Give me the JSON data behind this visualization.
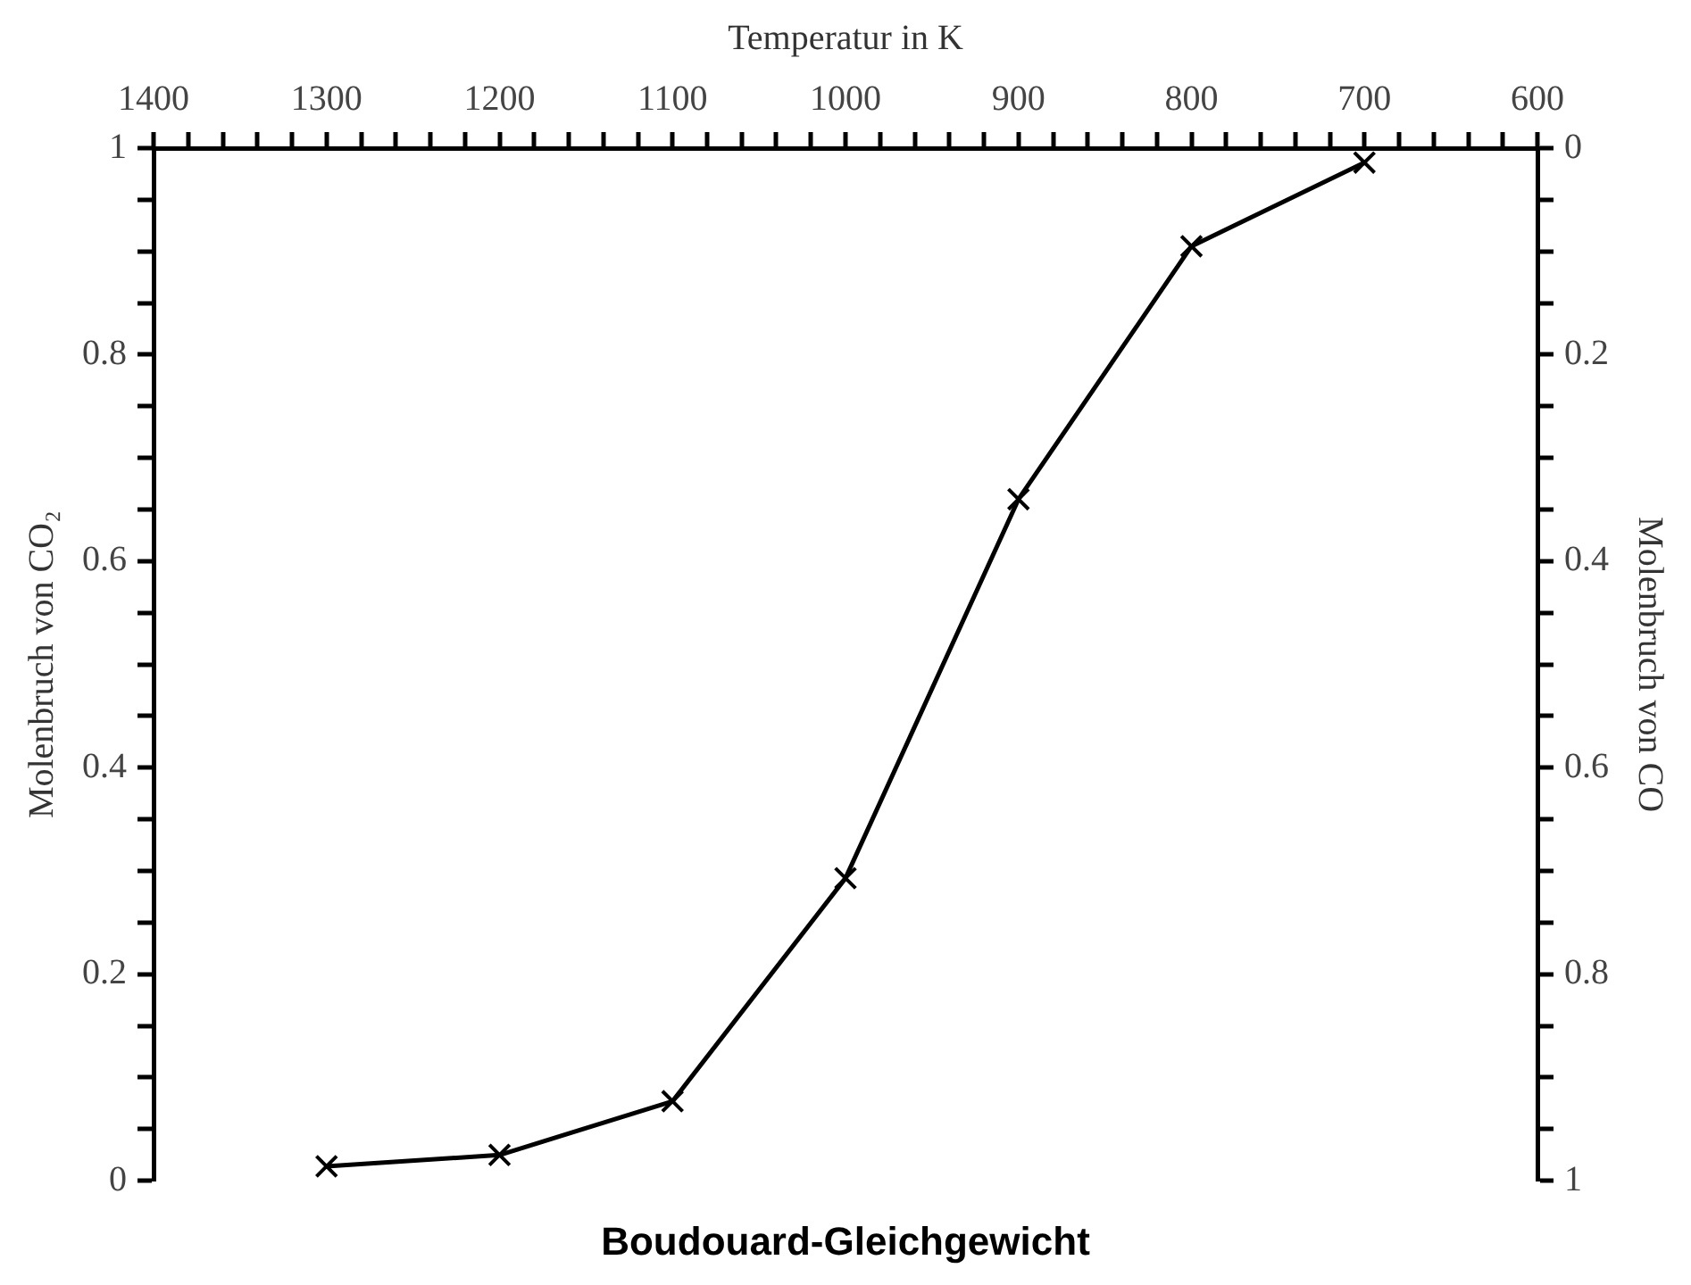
{
  "chart_data": {
    "type": "line",
    "title": "Boudouard-Gleichgewicht",
    "xlabel": "Temperatur in K",
    "ylabel": "Molenbruch von CO₂",
    "y2label": "Molenbruch von CO",
    "x": [
      700,
      800,
      900,
      1000,
      1100,
      1200,
      1300
    ],
    "series": [
      {
        "color": "#000000",
        "axis": "y2",
        "values": [
          0.014,
          0.095,
          0.34,
          0.707,
          0.923,
          0.975,
          0.986
        ]
      }
    ],
    "marker": "cross",
    "line_style": "solid",
    "xlim": [
      1400,
      600
    ],
    "xticks": [
      600,
      {
        "value": 620,
        "label": null
      },
      {
        "value": 640,
        "label": null
      },
      {
        "value": 660,
        "label": null
      },
      {
        "value": 680,
        "label": null
      },
      700,
      {
        "value": 720,
        "label": null
      },
      {
        "value": 740,
        "label": null
      },
      {
        "value": 760,
        "label": null
      },
      {
        "value": 780,
        "label": null
      },
      800,
      {
        "value": 820,
        "label": null
      },
      {
        "value": 840,
        "label": null
      },
      {
        "value": 860,
        "label": null
      },
      {
        "value": 880,
        "label": null
      },
      900,
      {
        "value": 920,
        "label": null
      },
      {
        "value": 940,
        "label": null
      },
      {
        "value": 960,
        "label": null
      },
      {
        "value": 980,
        "label": null
      },
      1000,
      {
        "value": 1020,
        "label": null
      },
      {
        "value": 1040,
        "label": null
      },
      {
        "value": 1060,
        "label": null
      },
      {
        "value": 1080,
        "label": null
      },
      1100,
      {
        "value": 1120,
        "label": null
      },
      {
        "value": 1140,
        "label": null
      },
      {
        "value": 1160,
        "label": null
      },
      {
        "value": 1180,
        "label": null
      },
      1200,
      {
        "value": 1220,
        "label": null
      },
      {
        "value": 1240,
        "label": null
      },
      {
        "value": 1260,
        "label": null
      },
      {
        "value": 1280,
        "label": null
      },
      1300,
      {
        "value": 1320,
        "label": null
      },
      {
        "value": 1340,
        "label": null
      },
      {
        "value": 1360,
        "label": null
      },
      {
        "value": 1380,
        "label": null
      },
      1400
    ],
    "ylim": [
      0,
      1
    ],
    "yticks": [
      0,
      {
        "value": 0.05,
        "label": null
      },
      {
        "value": 0.1,
        "label": null
      },
      {
        "value": 0.15,
        "label": null
      },
      0.2,
      {
        "value": 0.25,
        "label": null
      },
      {
        "value": 0.3,
        "label": null
      },
      {
        "value": 0.35,
        "label": null
      },
      0.4,
      {
        "value": 0.45,
        "label": null
      },
      {
        "value": 0.5,
        "label": null
      },
      {
        "value": 0.55,
        "label": null
      },
      0.6,
      {
        "value": 0.65,
        "label": null
      },
      {
        "value": 0.7,
        "label": null
      },
      {
        "value": 0.75,
        "label": null
      },
      0.8,
      {
        "value": 0.85,
        "label": null
      },
      {
        "value": 0.9,
        "label": null
      },
      {
        "value": 0.95,
        "label": null
      },
      1
    ],
    "y2lim": [
      1,
      0
    ],
    "y2ticks": [
      0,
      {
        "value": 0.05,
        "label": null
      },
      {
        "value": 0.1,
        "label": null
      },
      {
        "value": 0.15,
        "label": null
      },
      0.2,
      {
        "value": 0.25,
        "label": null
      },
      {
        "value": 0.3,
        "label": null
      },
      {
        "value": 0.35,
        "label": null
      },
      0.4,
      {
        "value": 0.45,
        "label": null
      },
      {
        "value": 0.5,
        "label": null
      },
      {
        "value": 0.55,
        "label": null
      },
      0.6,
      {
        "value": 0.65,
        "label": null
      },
      {
        "value": 0.7,
        "label": null
      },
      {
        "value": 0.75,
        "label": null
      },
      0.8,
      {
        "value": 0.85,
        "label": null
      },
      {
        "value": 0.9,
        "label": null
      },
      {
        "value": 0.95,
        "label": null
      },
      1
    ]
  }
}
